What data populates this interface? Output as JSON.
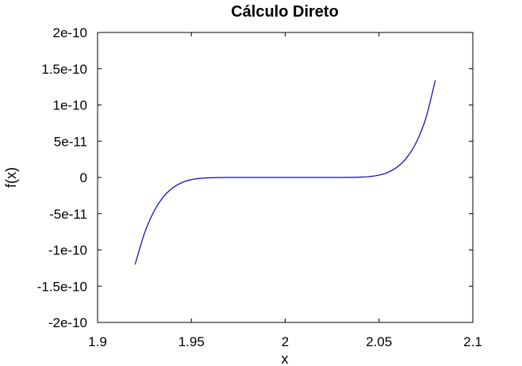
{
  "chart_data": {
    "type": "line",
    "title": "Cálculo Direto",
    "xlabel": "x",
    "ylabel": "f(x)",
    "xlim": [
      1.9,
      2.1
    ],
    "ylim": [
      -2e-10,
      2e-10
    ],
    "xticks": [
      1.9,
      1.95,
      2,
      2.05,
      2.1
    ],
    "xtick_labels": [
      "1.9",
      "1.95",
      "2",
      "2.05",
      "2.1"
    ],
    "yticks": [
      -2e-10,
      -1.5e-10,
      -1e-10,
      -5e-11,
      0,
      5e-11,
      1e-10,
      1.5e-10,
      2e-10
    ],
    "ytick_labels": [
      "-2e-10",
      "-1.5e-10",
      "-1e-10",
      "-5e-11",
      "0",
      "5e-11",
      "1e-10",
      "1.5e-10",
      "2e-10"
    ],
    "grid": false,
    "series": [
      {
        "color": "#0000cc",
        "x": [
          1.92,
          1.925,
          1.93,
          1.935,
          1.94,
          1.945,
          1.95,
          1.955,
          1.96,
          1.965,
          1.97,
          1.975,
          1.98,
          1.985,
          1.99,
          1.995,
          2.0,
          2.005,
          2.01,
          2.015,
          2.02,
          2.025,
          2.03,
          2.035,
          2.04,
          2.045,
          2.05,
          2.055,
          2.06,
          2.065,
          2.07,
          2.075,
          2.08
        ],
        "y": [
          -1.2e-10,
          -7.7e-11,
          -4.7e-11,
          -2.7e-11,
          -1.45e-11,
          -7e-12,
          -3e-12,
          -1.2e-12,
          -4e-13,
          -1e-13,
          0,
          0,
          0,
          0,
          0,
          0,
          0,
          0,
          0,
          0,
          0,
          0,
          0,
          1e-13,
          4e-13,
          1.3e-12,
          3.2e-12,
          7.3e-12,
          1.5e-11,
          2.8e-11,
          4.9e-11,
          8.2e-11,
          1.34e-10
        ]
      }
    ]
  }
}
